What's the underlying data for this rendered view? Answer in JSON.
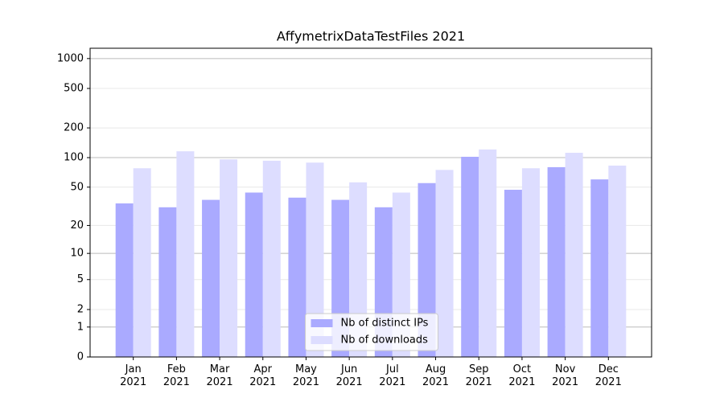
{
  "chart_data": {
    "type": "bar",
    "title": "AffymetrixDataTestFiles 2021",
    "categories": [
      "Jan\n2021",
      "Feb\n2021",
      "Mar\n2021",
      "Apr\n2021",
      "May\n2021",
      "Jun\n2021",
      "Jul\n2021",
      "Aug\n2021",
      "Sep\n2021",
      "Oct\n2021",
      "Nov\n2021",
      "Dec\n2021"
    ],
    "series": [
      {
        "name": "Nb of distinct IPs",
        "color": "#aaaaff",
        "values": [
          34,
          31,
          37,
          44,
          39,
          37,
          31,
          55,
          102,
          47,
          80,
          60
        ]
      },
      {
        "name": "Nb of downloads",
        "color": "#ddddff",
        "values": [
          78,
          116,
          96,
          93,
          89,
          56,
          44,
          75,
          121,
          78,
          112,
          83
        ]
      }
    ],
    "yscale": "log1p",
    "ylim": [
      0,
      1270
    ],
    "yticks": [
      0,
      1,
      2,
      5,
      10,
      20,
      50,
      100,
      200,
      500,
      1000
    ],
    "grid": true,
    "legend": "lower center"
  }
}
